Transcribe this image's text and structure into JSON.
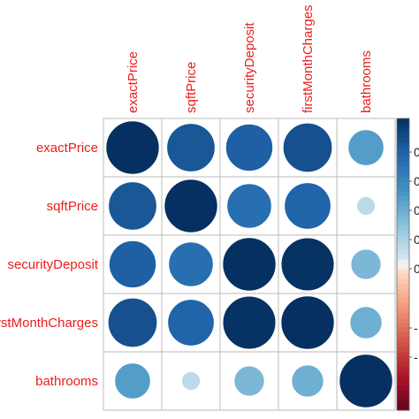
{
  "chart_data": {
    "type": "heatmap",
    "style": "circle correlation plot",
    "variables": [
      "exactPrice",
      "sqftPrice",
      "securityDeposit",
      "firstMonthCharges",
      "bathrooms"
    ],
    "matrix": [
      [
        1.0,
        0.82,
        0.78,
        0.85,
        0.45
      ],
      [
        0.82,
        1.0,
        0.7,
        0.76,
        0.12
      ],
      [
        0.78,
        0.7,
        1.0,
        0.99,
        0.32
      ],
      [
        0.85,
        0.76,
        0.99,
        1.0,
        0.36
      ],
      [
        0.45,
        0.12,
        0.32,
        0.36,
        1.0
      ]
    ],
    "colorbar": {
      "range": [
        -1,
        1
      ],
      "tick_labels": [
        "0",
        "0",
        "0",
        "0",
        "0",
        "-",
        "-"
      ]
    },
    "colors": {
      "label": "#ee1c1c",
      "grid": "#bbbbbb",
      "negative_strong": "#67001f",
      "neutral": "#f7f7f7",
      "positive_strong": "#053061"
    }
  }
}
